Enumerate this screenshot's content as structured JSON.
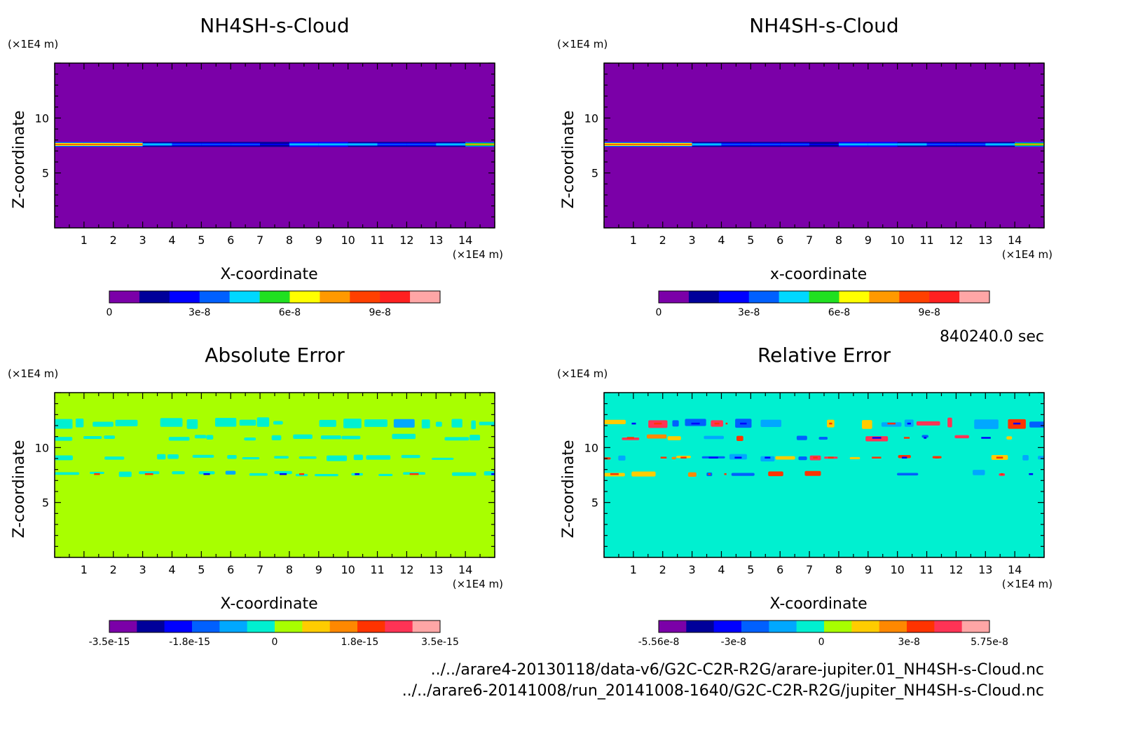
{
  "chart_data": [
    {
      "type": "heatmap",
      "title": "NH4SH-s-Cloud",
      "xlabel": "X-coordinate",
      "ylabel": "Z-coordinate",
      "x_unit": "(×1E4 m)",
      "y_unit": "(×1E4 m)",
      "xlim": [
        0,
        15
      ],
      "ylim": [
        0,
        15
      ],
      "x_ticks": [
        1,
        2,
        3,
        4,
        5,
        6,
        7,
        8,
        9,
        10,
        11,
        12,
        13,
        14
      ],
      "y_ticks": [
        5,
        10
      ],
      "background_value": 0,
      "cloud_layer": {
        "z": 7.6,
        "values": [
          8e-08,
          8e-08,
          8e-08,
          4e-08,
          3.5e-08,
          3e-08,
          3e-08,
          2.5e-08,
          4.5e-08,
          5e-08,
          4e-08,
          3e-08,
          3e-08,
          4e-08,
          7e-08
        ]
      },
      "colorbar": {
        "colors": [
          "#7b00a8",
          "#00009a",
          "#0000ff",
          "#0060ff",
          "#00d8ff",
          "#20e020",
          "#ffff00",
          "#ff9900",
          "#ff4000",
          "#ff2020",
          "#ffa6a6"
        ],
        "labels": [
          {
            "v": 0,
            "text": "0"
          },
          {
            "v": 3e-08,
            "text": "3e-8"
          },
          {
            "v": 6e-08,
            "text": "6e-8"
          },
          {
            "v": 9e-08,
            "text": "9e-8"
          }
        ],
        "range": [
          0,
          1.1e-07
        ]
      }
    },
    {
      "type": "heatmap",
      "title": "NH4SH-s-Cloud",
      "xlabel": "x-coordinate",
      "ylabel": "Z-coordinate",
      "x_unit": "(×1E4 m)",
      "y_unit": "(×1E4 m)",
      "xlim": [
        0,
        15
      ],
      "ylim": [
        0,
        15
      ],
      "x_ticks": [
        1,
        2,
        3,
        4,
        5,
        6,
        7,
        8,
        9,
        10,
        11,
        12,
        13,
        14
      ],
      "y_ticks": [
        5,
        10
      ],
      "background_value": 0,
      "cloud_layer": {
        "z": 7.6,
        "values": [
          8e-08,
          8e-08,
          8e-08,
          4e-08,
          3.5e-08,
          3e-08,
          3e-08,
          2.5e-08,
          4.5e-08,
          5e-08,
          4e-08,
          3e-08,
          3e-08,
          4e-08,
          7e-08
        ]
      },
      "colorbar": {
        "colors": [
          "#7b00a8",
          "#00009a",
          "#0000ff",
          "#0060ff",
          "#00d8ff",
          "#20e020",
          "#ffff00",
          "#ff9900",
          "#ff4000",
          "#ff2020",
          "#ffa6a6"
        ],
        "labels": [
          {
            "v": 0,
            "text": "0"
          },
          {
            "v": 3e-08,
            "text": "3e-8"
          },
          {
            "v": 6e-08,
            "text": "6e-8"
          },
          {
            "v": 9e-08,
            "text": "9e-8"
          }
        ],
        "range": [
          0,
          1.1e-07
        ]
      }
    },
    {
      "type": "heatmap",
      "title": "Absolute Error",
      "xlabel": "X-coordinate",
      "ylabel": "Z-coordinate",
      "x_unit": "(×1E4 m)",
      "y_unit": "(×1E4 m)",
      "xlim": [
        0,
        15
      ],
      "ylim": [
        0,
        15
      ],
      "x_ticks": [
        1,
        2,
        3,
        4,
        5,
        6,
        7,
        8,
        9,
        10,
        11,
        12,
        13,
        14
      ],
      "y_ticks": [
        5,
        10
      ],
      "background_value": 0,
      "error_bands": [
        12.2,
        10.9,
        9.1,
        7.6
      ],
      "colorbar": {
        "colors": [
          "#7b00a8",
          "#00009a",
          "#0000ff",
          "#0060ff",
          "#00a8ff",
          "#00f0d0",
          "#a8ff00",
          "#ffcc00",
          "#ff8800",
          "#ff3300",
          "#ff3355",
          "#ffa6a6"
        ],
        "labels": [
          {
            "v": -3.5e-15,
            "text": "-3.5e-15"
          },
          {
            "v": -1.8e-15,
            "text": "-1.8e-15"
          },
          {
            "v": 0,
            "text": "0"
          },
          {
            "v": 1.8e-15,
            "text": "1.8e-15"
          },
          {
            "v": 3.5e-15,
            "text": "3.5e-15"
          }
        ],
        "range": [
          -3.5e-15,
          3.5e-15
        ]
      }
    },
    {
      "type": "heatmap",
      "title": "Relative Error",
      "xlabel": "X-coordinate",
      "ylabel": "Z-coordinate",
      "x_unit": "(×1E4 m)",
      "y_unit": "(×1E4 m)",
      "xlim": [
        0,
        15
      ],
      "ylim": [
        0,
        15
      ],
      "x_ticks": [
        1,
        2,
        3,
        4,
        5,
        6,
        7,
        8,
        9,
        10,
        11,
        12,
        13,
        14
      ],
      "y_ticks": [
        5,
        10
      ],
      "background_value": 0,
      "error_bands": [
        12.2,
        10.9,
        9.1,
        7.6
      ],
      "colorbar": {
        "colors": [
          "#7b00a8",
          "#00009a",
          "#0000ff",
          "#0060ff",
          "#00a8ff",
          "#00f0d0",
          "#a8ff00",
          "#ffcc00",
          "#ff8800",
          "#ff3300",
          "#ff3355",
          "#ffa6a6"
        ],
        "labels": [
          {
            "v": -5.56e-08,
            "text": "-5.56e-8"
          },
          {
            "v": -3e-08,
            "text": "-3e-8"
          },
          {
            "v": 0,
            "text": "0"
          },
          {
            "v": 3e-08,
            "text": "3e-8"
          },
          {
            "v": 5.75e-08,
            "text": "5.75e-8"
          }
        ],
        "range": [
          -5.56e-08,
          5.75e-08
        ]
      }
    }
  ],
  "time_label": "840240.0 sec",
  "file_paths": [
    "../../arare4-20130118/data-v6/G2C-C2R-R2G/arare-jupiter.01_NH4SH-s-Cloud.nc",
    "../../arare6-20141008/run_20141008-1640/G2C-C2R-R2G/jupiter_NH4SH-s-Cloud.nc"
  ],
  "colors": {
    "cloud_background": "#7b00a8",
    "error_background": "#a8ff00",
    "error_patch": "#00e8e0"
  }
}
